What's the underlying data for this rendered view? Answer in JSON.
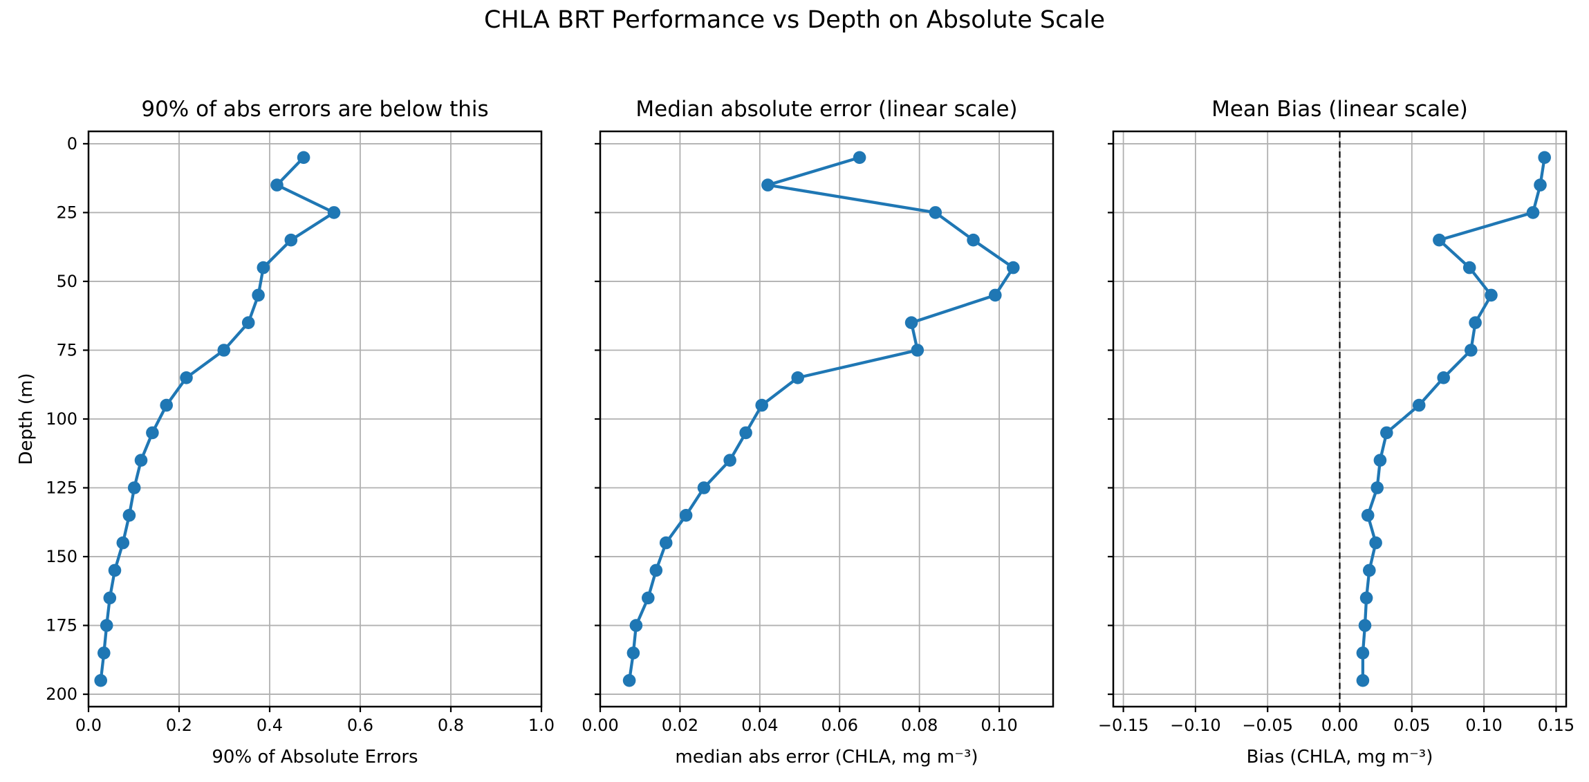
{
  "figure": {
    "suptitle": "CHLA BRT Performance vs Depth on Absolute Scale",
    "background_color": "#ffffff",
    "line_color": "#1f77b4",
    "grid_color": "#b0b0b0",
    "spine_color": "#000000",
    "text_color": "#000000"
  },
  "chart_data": [
    {
      "type": "line",
      "orientation": "vertical-profile",
      "title": "90% of abs errors are below this",
      "xlabel": "90% of Absolute Errors",
      "ylabel": "Depth (m)",
      "xlim": [
        0.0,
        1.0
      ],
      "ylim_depth": [
        -4.5,
        204.5
      ],
      "y_axis_inverted": true,
      "grid": true,
      "zero_line": false,
      "show_y_tick_labels": true,
      "x_ticks": [
        0.0,
        0.2,
        0.4,
        0.6,
        0.8,
        1.0
      ],
      "x_tick_labels": [
        "0.0",
        "0.2",
        "0.4",
        "0.6",
        "0.8",
        "1.0"
      ],
      "y_ticks": [
        0,
        25,
        50,
        75,
        100,
        125,
        150,
        175,
        200
      ],
      "y_tick_labels": [
        "0",
        "25",
        "50",
        "75",
        "100",
        "125",
        "150",
        "175",
        "200"
      ],
      "depths_m": [
        5,
        15,
        25,
        35,
        45,
        55,
        65,
        75,
        85,
        95,
        105,
        115,
        125,
        135,
        145,
        155,
        165,
        175,
        185,
        195
      ],
      "values": [
        0.475,
        0.416,
        0.542,
        0.447,
        0.386,
        0.375,
        0.353,
        0.299,
        0.216,
        0.172,
        0.141,
        0.116,
        0.101,
        0.09,
        0.076,
        0.058,
        0.047,
        0.04,
        0.034,
        0.027
      ]
    },
    {
      "type": "line",
      "orientation": "vertical-profile",
      "title": "Median absolute error (linear scale)",
      "xlabel": "median abs error (CHLA, mg m⁻³)",
      "ylabel": "Depth (m)",
      "xlim": [
        0.0,
        0.1135
      ],
      "ylim_depth": [
        -4.5,
        204.5
      ],
      "y_axis_inverted": true,
      "grid": true,
      "zero_line": false,
      "show_y_tick_labels": false,
      "x_ticks": [
        0.0,
        0.02,
        0.04,
        0.06,
        0.08,
        0.1
      ],
      "x_tick_labels": [
        "0.00",
        "0.02",
        "0.04",
        "0.06",
        "0.08",
        "0.10"
      ],
      "y_ticks": [
        0,
        25,
        50,
        75,
        100,
        125,
        150,
        175,
        200
      ],
      "y_tick_labels": [],
      "depths_m": [
        5,
        15,
        25,
        35,
        45,
        55,
        65,
        75,
        85,
        95,
        105,
        115,
        125,
        135,
        145,
        155,
        165,
        175,
        185,
        195
      ],
      "values": [
        0.065,
        0.042,
        0.084,
        0.0935,
        0.1035,
        0.099,
        0.078,
        0.0795,
        0.0495,
        0.0405,
        0.0365,
        0.0325,
        0.026,
        0.0215,
        0.0165,
        0.014,
        0.012,
        0.009,
        0.0083,
        0.0073
      ]
    },
    {
      "type": "line",
      "orientation": "vertical-profile",
      "title": "Mean Bias (linear scale)",
      "xlabel": "Bias (CHLA, mg m⁻³)",
      "ylabel": "Depth (m)",
      "xlim": [
        -0.157,
        0.157
      ],
      "ylim_depth": [
        -4.5,
        204.5
      ],
      "y_axis_inverted": true,
      "grid": true,
      "zero_line": true,
      "show_y_tick_labels": false,
      "x_ticks": [
        -0.15,
        -0.1,
        -0.05,
        0.0,
        0.05,
        0.1,
        0.15
      ],
      "x_tick_labels": [
        "−0.15",
        "−0.10",
        "−0.05",
        "0.00",
        "0.05",
        "0.10",
        "0.15"
      ],
      "y_ticks": [
        0,
        25,
        50,
        75,
        100,
        125,
        150,
        175,
        200
      ],
      "y_tick_labels": [],
      "depths_m": [
        5,
        15,
        25,
        35,
        45,
        55,
        65,
        75,
        85,
        95,
        105,
        115,
        125,
        135,
        145,
        155,
        165,
        175,
        185,
        195
      ],
      "values": [
        0.142,
        0.139,
        0.134,
        0.069,
        0.09,
        0.105,
        0.094,
        0.091,
        0.072,
        0.055,
        0.0325,
        0.028,
        0.026,
        0.0195,
        0.025,
        0.0205,
        0.0185,
        0.0175,
        0.016,
        0.016
      ]
    }
  ]
}
